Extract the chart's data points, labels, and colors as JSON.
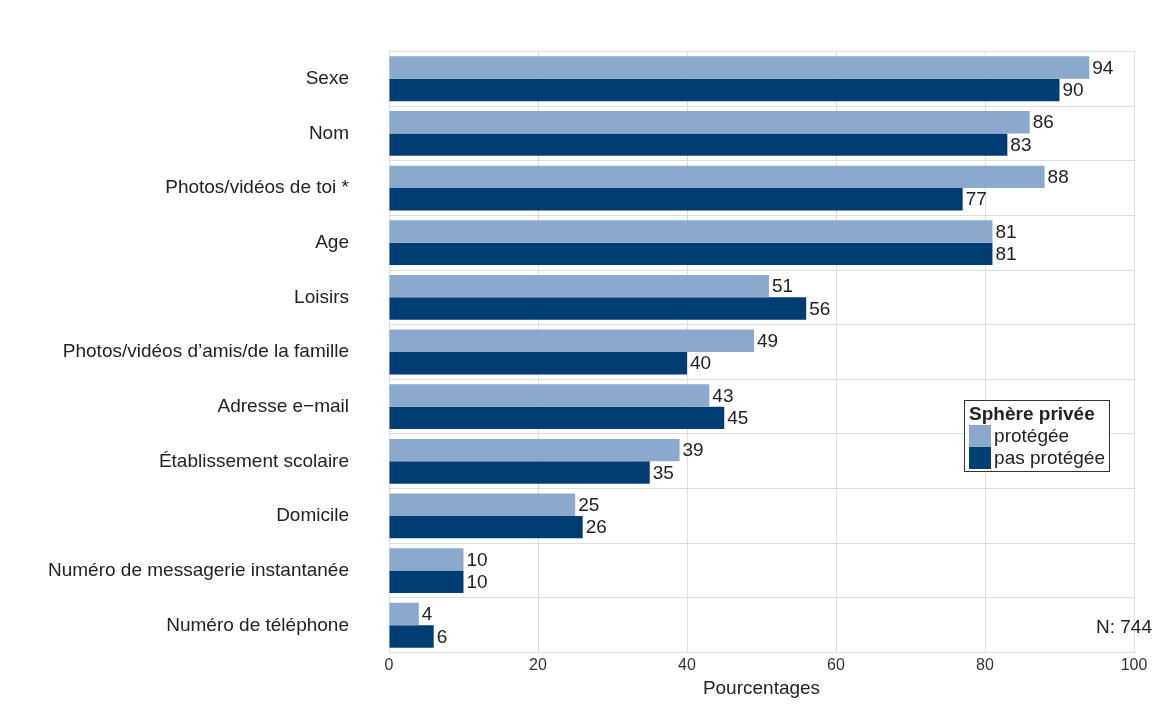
{
  "chart_data": {
    "type": "bar",
    "orientation": "horizontal",
    "xlabel": "Pourcentages",
    "legend_title": "Sphère privée",
    "legend": "right",
    "grid": true,
    "data_labels": true,
    "categories": [
      "Sexe",
      "Nom",
      "Photos/vidéos de toi *",
      "Age",
      "Loisirs",
      "Photos/vidéos d’amis/de la famille",
      "Adresse e−mail",
      "Établissement scolaire",
      "Domicile",
      "Numéro de messagerie instantanée",
      "Numéro de téléphone"
    ],
    "series": [
      {
        "name": "protégée",
        "color": "#8aa9cc",
        "values": [
          94,
          86,
          88,
          81,
          51,
          49,
          43,
          39,
          25,
          10,
          4
        ]
      },
      {
        "name": "pas protégée",
        "color": "#003d73",
        "values": [
          90,
          83,
          77,
          81,
          56,
          40,
          45,
          35,
          26,
          10,
          6
        ]
      }
    ],
    "xlim": [
      0,
      100
    ],
    "xticks": [
      0,
      20,
      40,
      60,
      80,
      100
    ],
    "annotations": [
      "N: 744"
    ]
  }
}
